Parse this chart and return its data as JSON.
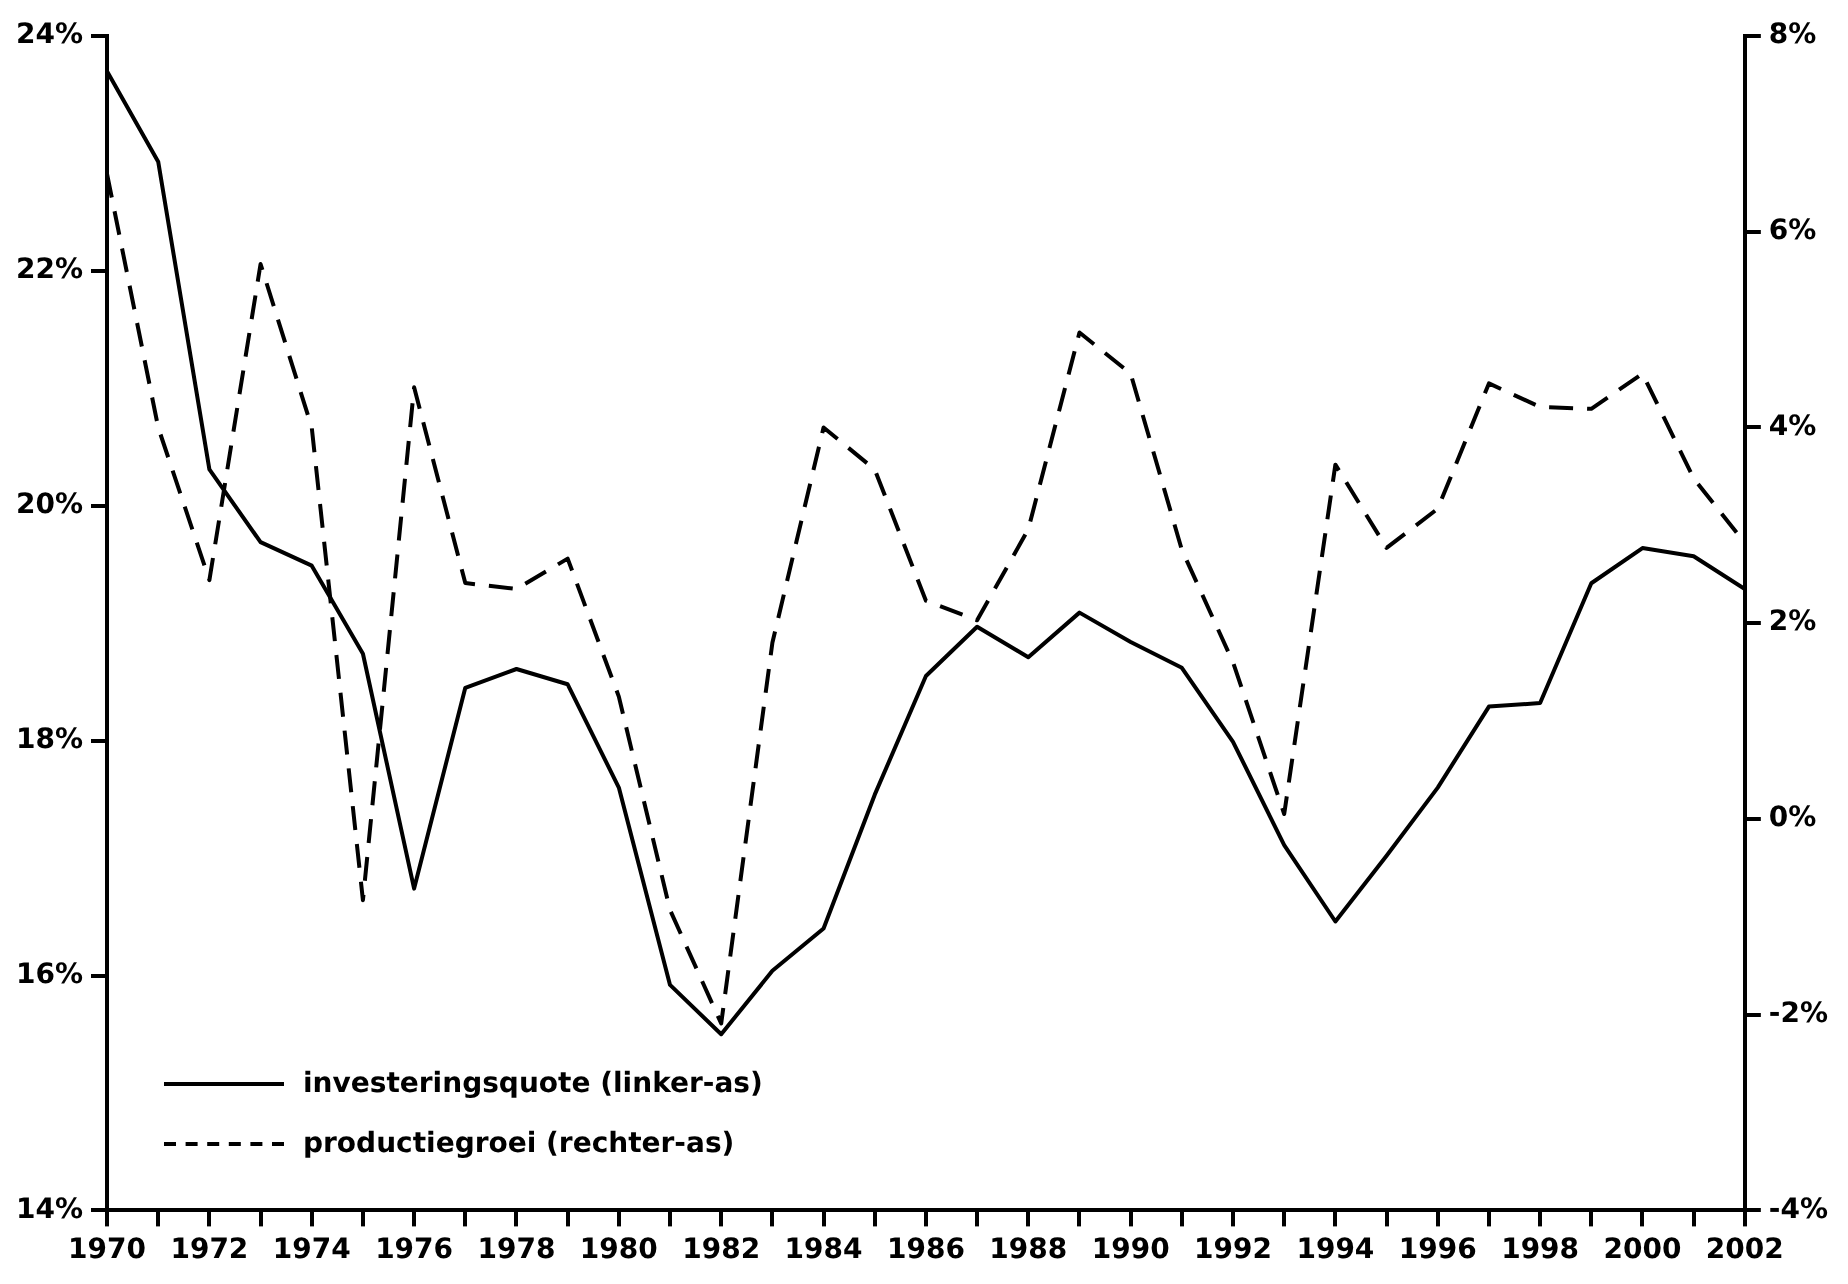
{
  "chart_data": {
    "type": "line",
    "x": [
      1970,
      1971,
      1972,
      1973,
      1974,
      1975,
      1976,
      1977,
      1978,
      1979,
      1980,
      1981,
      1982,
      1983,
      1984,
      1985,
      1986,
      1987,
      1988,
      1989,
      1990,
      1991,
      1992,
      1993,
      1994,
      1995,
      1996,
      1997,
      1998,
      1999,
      2000,
      2001,
      2002
    ],
    "xlim": [
      1970,
      2002
    ],
    "xticks": [
      1970,
      {
        "value": 1971,
        "label": null
      },
      1972,
      {
        "value": 1973,
        "label": null
      },
      1974,
      {
        "value": 1975,
        "label": null
      },
      1976,
      {
        "value": 1977,
        "label": null
      },
      1978,
      {
        "value": 1979,
        "label": null
      },
      1980,
      {
        "value": 1981,
        "label": null
      },
      1982,
      {
        "value": 1983,
        "label": null
      },
      1984,
      {
        "value": 1985,
        "label": null
      },
      1986,
      {
        "value": 1987,
        "label": null
      },
      1988,
      {
        "value": 1989,
        "label": null
      },
      1990,
      {
        "value": 1991,
        "label": null
      },
      1992,
      {
        "value": 1993,
        "label": null
      },
      1994,
      {
        "value": 1995,
        "label": null
      },
      1996,
      {
        "value": 1997,
        "label": null
      },
      1998,
      {
        "value": 1999,
        "label": null
      },
      2000,
      {
        "value": 2001,
        "label": null
      },
      2002
    ],
    "ylim": [
      14,
      24
    ],
    "yticks": [
      {
        "value": 14,
        "label": "14%"
      },
      {
        "value": 16,
        "label": "16%"
      },
      {
        "value": 18,
        "label": "18%"
      },
      {
        "value": 20,
        "label": "20%"
      },
      {
        "value": 22,
        "label": "22%"
      },
      {
        "value": 24,
        "label": "24%"
      }
    ],
    "y2lim": [
      -4,
      8
    ],
    "y2ticks": [
      {
        "value": -4,
        "label": "-4%"
      },
      {
        "value": -2,
        "label": "-2%"
      },
      {
        "value": 0,
        "label": "0%"
      },
      {
        "value": 2,
        "label": "2%"
      },
      {
        "value": 4,
        "label": "4%"
      },
      {
        "value": 6,
        "label": "6%"
      },
      {
        "value": 8,
        "label": "8%"
      }
    ],
    "grid": false,
    "legend": "bottom left",
    "marker": "none",
    "series": [
      {
        "name": "investeringsquote (linker-as)",
        "color": "#000000",
        "line_style": "solid",
        "axis": "y",
        "values": [
          23.7,
          22.93,
          20.31,
          19.69,
          19.49,
          18.74,
          16.74,
          18.45,
          18.61,
          18.48,
          17.6,
          15.92,
          15.5,
          16.04,
          16.4,
          17.54,
          18.55,
          18.97,
          18.71,
          19.09,
          18.84,
          18.62,
          17.99,
          17.11,
          16.46,
          17.02,
          17.6,
          18.29,
          18.32,
          19.34,
          19.64,
          19.57,
          19.29
        ]
      },
      {
        "name": "productiegroei (rechter-as)",
        "color": "#000000",
        "line_style": "dashed",
        "axis": "y2",
        "values": [
          6.59,
          4.0,
          2.44,
          5.67,
          4.0,
          -0.83,
          4.41,
          2.41,
          2.35,
          2.66,
          1.25,
          -0.93,
          -2.09,
          1.8,
          4.0,
          3.57,
          2.23,
          2.03,
          2.96,
          4.97,
          4.55,
          2.75,
          1.6,
          0.05,
          3.62,
          2.77,
          3.17,
          4.45,
          4.21,
          4.19,
          4.55,
          3.48,
          2.82
        ]
      }
    ]
  }
}
